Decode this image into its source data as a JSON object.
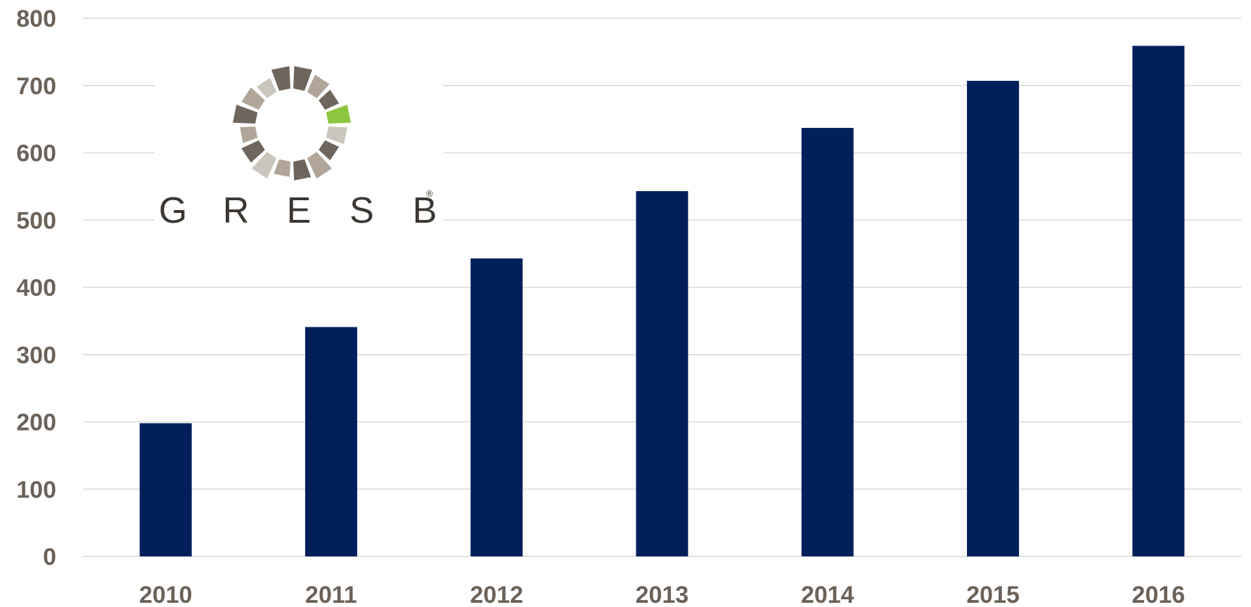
{
  "chart_data": {
    "type": "bar",
    "categories": [
      "2010",
      "2011",
      "2012",
      "2013",
      "2014",
      "2015",
      "2016"
    ],
    "values": [
      198,
      341,
      443,
      543,
      637,
      707,
      759
    ],
    "ylim": [
      0,
      800
    ],
    "yticks": [
      "0",
      "100",
      "200",
      "300",
      "400",
      "500",
      "600",
      "700",
      "800"
    ],
    "grid": true,
    "legend": "none",
    "colors": {
      "bar": "#001f5b",
      "grid": "#d9d9d9",
      "tick_text": "#6b6259"
    }
  },
  "logo": {
    "wordmark": [
      "G",
      "R",
      "E",
      "S",
      "B"
    ],
    "registered": "®",
    "colors": {
      "dark": "#6e665d",
      "light": "#b0a597",
      "pale": "#c9c7bd",
      "accent": "#8dc63f"
    }
  }
}
